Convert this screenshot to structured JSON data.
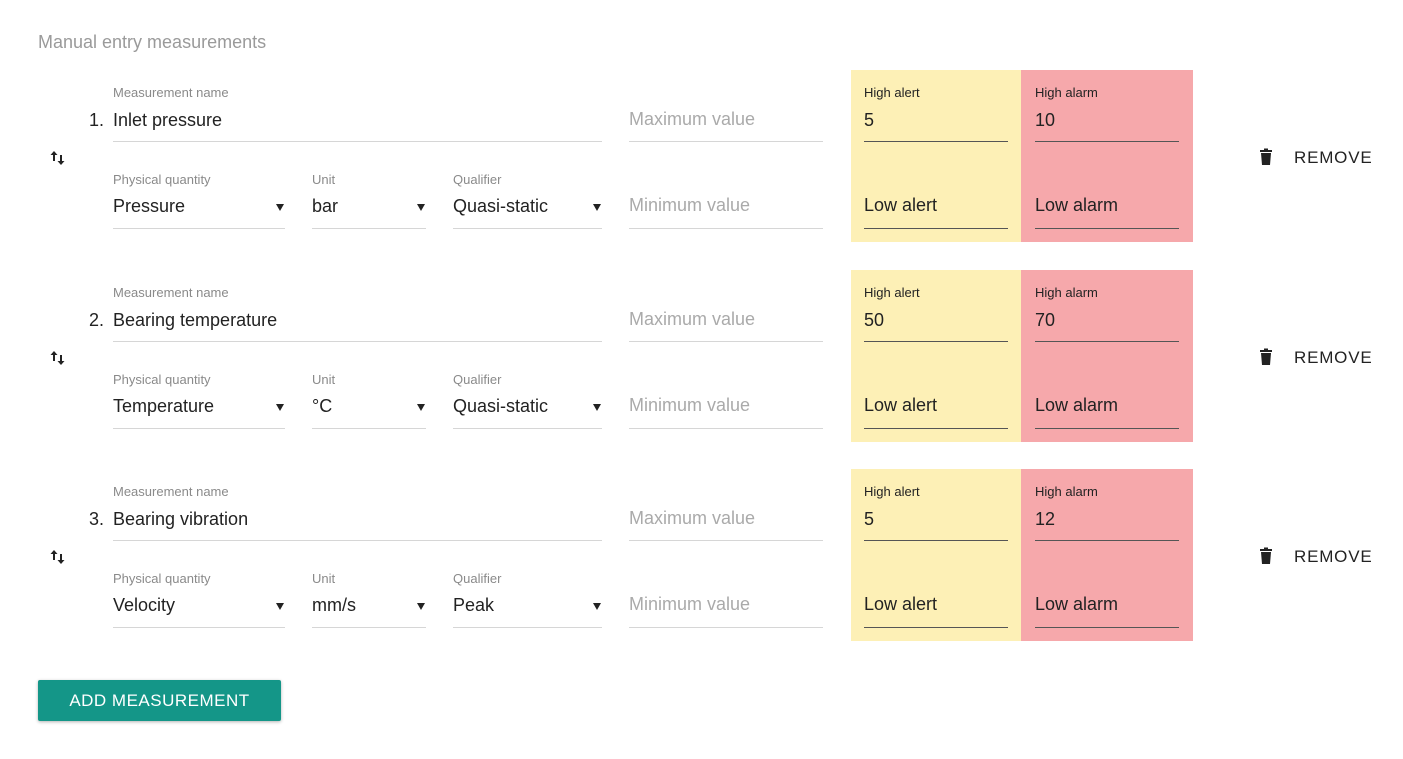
{
  "header": {
    "title": "Manual entry measurements"
  },
  "labels": {
    "measurement_name": "Measurement name",
    "maximum_value": "Maximum value",
    "minimum_value": "Minimum value",
    "physical_quantity": "Physical quantity",
    "unit": "Unit",
    "qualifier": "Qualifier",
    "high_alert": "High alert",
    "high_alarm": "High alarm",
    "low_alert": "Low alert",
    "low_alarm": "Low alarm",
    "remove": "REMOVE"
  },
  "measurements": [
    {
      "index": "1.",
      "name": "Inlet pressure",
      "physical_quantity": "Pressure",
      "unit": "bar",
      "qualifier": "Quasi-static",
      "high_alert": 5,
      "high_alarm": 10
    },
    {
      "index": "2.",
      "name": "Bearing temperature",
      "physical_quantity": "Temperature",
      "unit": "°C",
      "qualifier": "Quasi-static",
      "high_alert": 50,
      "high_alarm": 70
    },
    {
      "index": "3.",
      "name": "Bearing vibration",
      "physical_quantity": "Velocity",
      "unit": "mm/s",
      "qualifier": "Peak",
      "high_alert": 5,
      "high_alarm": 12
    }
  ],
  "add_button": "ADD MEASUREMENT"
}
